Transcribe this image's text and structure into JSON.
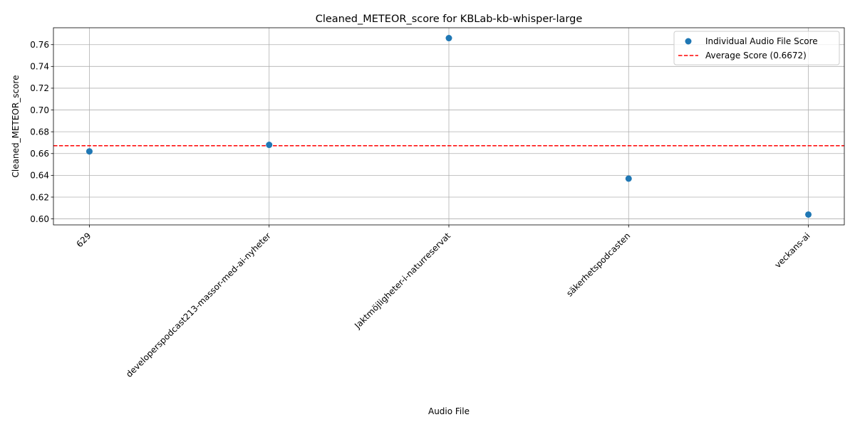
{
  "chart_data": {
    "type": "scatter",
    "title": "Cleaned_METEOR_score for KBLab-kb-whisper-large",
    "xlabel": "Audio File",
    "ylabel": "Cleaned_METEOR_score",
    "categories": [
      "629",
      "developerspodcast213-massor-med-ai-nyheter",
      "Jaktmöjligheter-i-naturreservat",
      "säkerhetspodcasten",
      "veckans-ai"
    ],
    "series": [
      {
        "name": "Individual Audio File Score",
        "values": [
          0.662,
          0.668,
          0.766,
          0.637,
          0.604
        ],
        "color": "#1f77b4"
      }
    ],
    "average": {
      "label": "Average Score (0.6672)",
      "value": 0.6672,
      "color": "#ff0000",
      "style": "dashed"
    },
    "ylim": [
      0.5945,
      0.7755
    ],
    "yticks": [
      "0.60",
      "0.62",
      "0.64",
      "0.66",
      "0.68",
      "0.70",
      "0.72",
      "0.74",
      "0.76"
    ],
    "grid": true,
    "legend_position": "top-right"
  }
}
